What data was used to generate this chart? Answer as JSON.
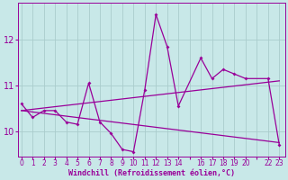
{
  "xlabel": "Windchill (Refroidissement éolien,°C)",
  "bg_color": "#c8e8e8",
  "line_color": "#990099",
  "grid_color": "#aacccc",
  "tick_color": "#990099",
  "label_color": "#990099",
  "series_x": [
    0,
    1,
    2,
    3,
    4,
    5,
    6,
    7,
    8,
    9,
    10,
    11,
    12,
    13,
    14,
    16,
    17,
    18,
    19,
    20,
    22,
    23
  ],
  "series_y": [
    10.6,
    10.3,
    10.45,
    10.45,
    10.2,
    10.15,
    11.05,
    10.2,
    9.95,
    9.6,
    9.55,
    10.9,
    12.55,
    11.85,
    10.55,
    11.6,
    11.15,
    11.35,
    11.25,
    11.15,
    11.15,
    9.7
  ],
  "trend1_x": [
    0,
    23
  ],
  "trend1_y": [
    10.45,
    11.1
  ],
  "trend2_x": [
    0,
    23
  ],
  "trend2_y": [
    10.45,
    9.75
  ],
  "ylim": [
    9.45,
    12.8
  ],
  "xlim": [
    -0.3,
    23.5
  ],
  "yticks": [
    10,
    11,
    12
  ],
  "xtick_positions": [
    0,
    1,
    2,
    3,
    4,
    5,
    6,
    7,
    8,
    9,
    10,
    11,
    12,
    13,
    14,
    16,
    17,
    18,
    19,
    20,
    22,
    23
  ],
  "xtick_labels": [
    "0",
    "1",
    "2",
    "3",
    "4",
    "5",
    "6",
    "7",
    "8",
    "9",
    "10",
    "11",
    "12",
    "13",
    "14",
    "16",
    "17",
    "18",
    "19",
    "20",
    "22",
    "23"
  ]
}
